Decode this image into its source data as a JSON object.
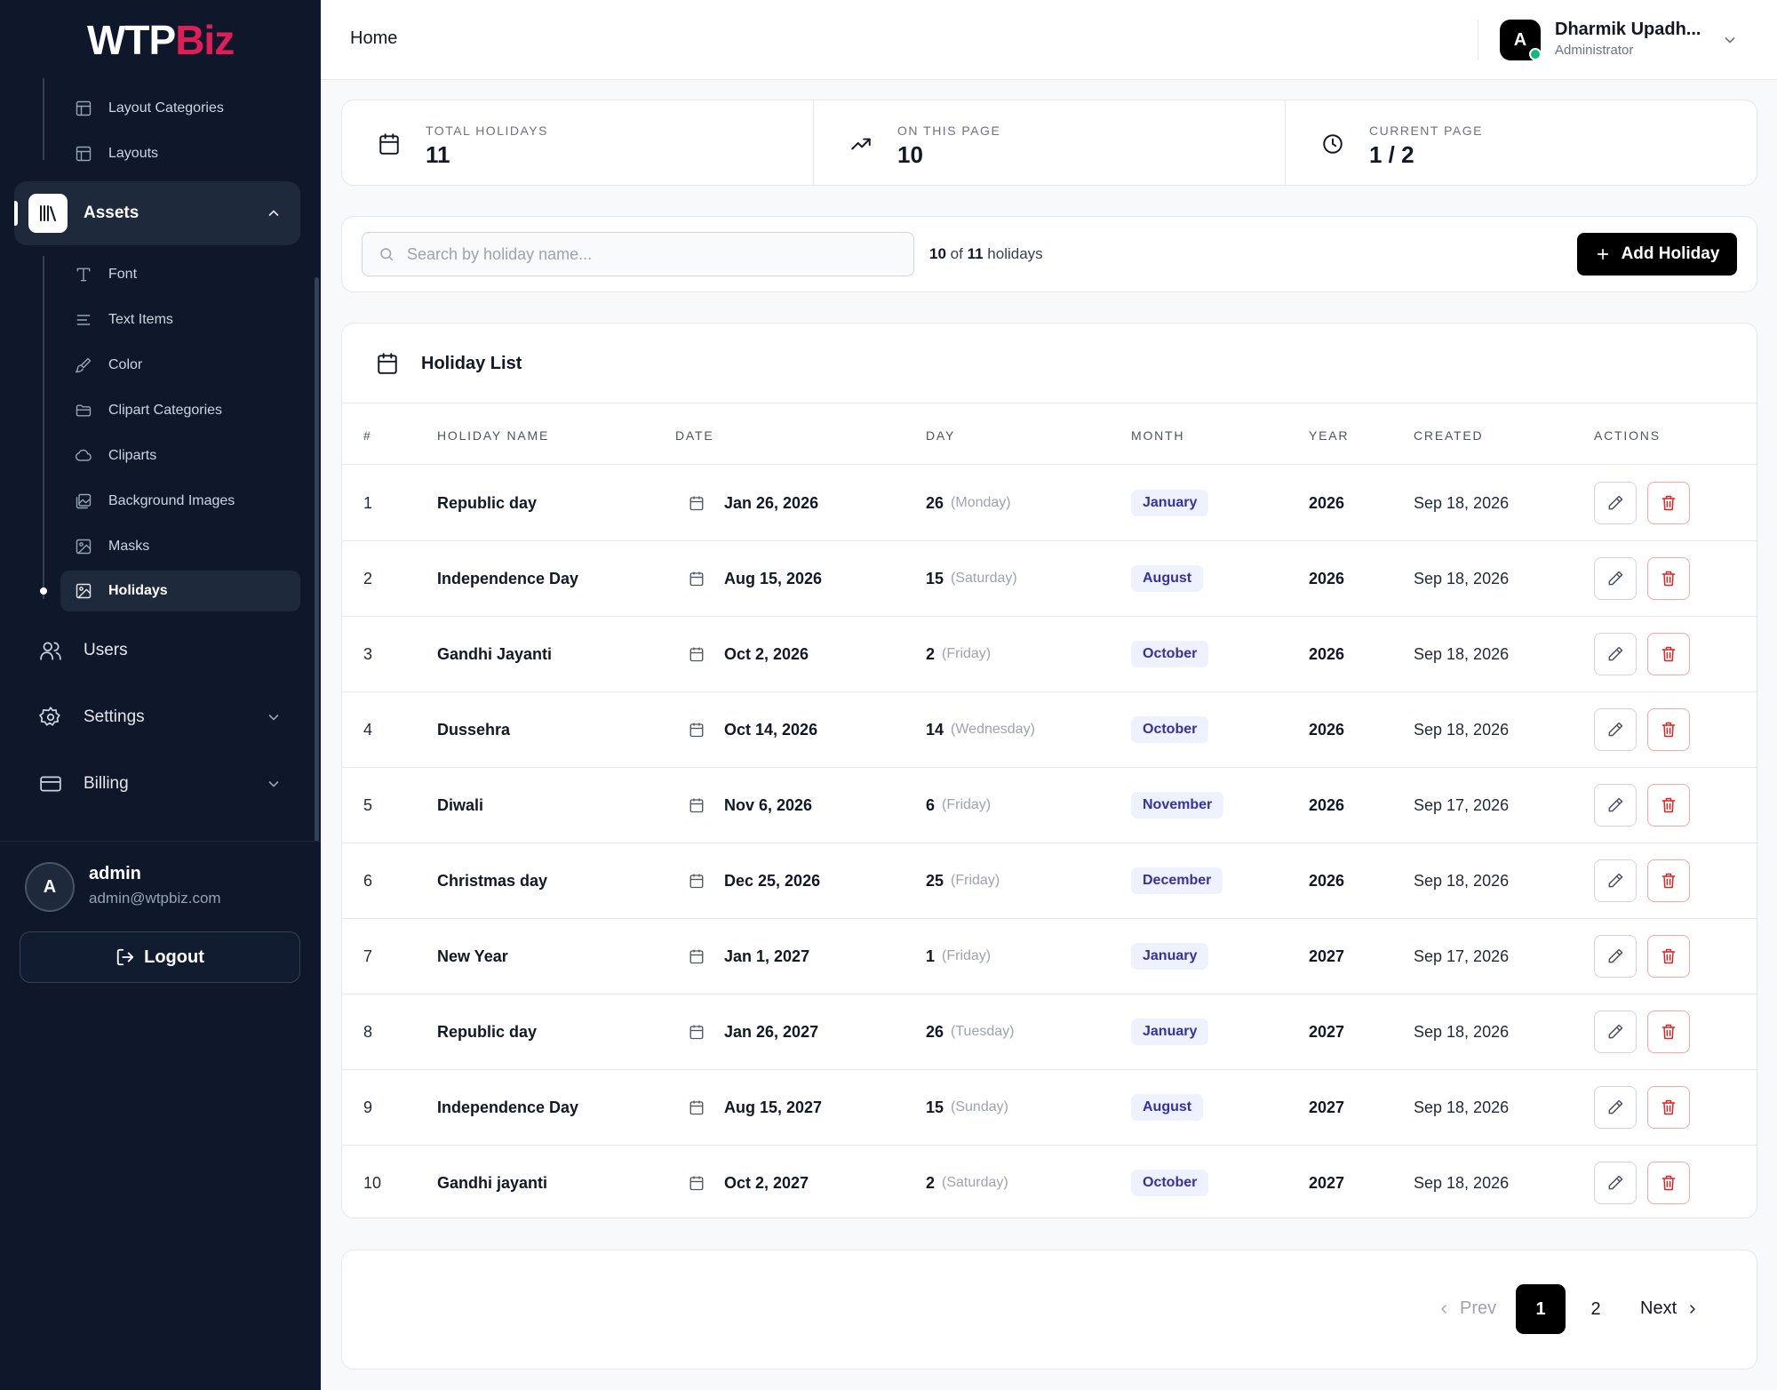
{
  "brand": {
    "logo_part1": "WTP",
    "logo_part2": "Biz"
  },
  "sidebar": {
    "layout_items": [
      {
        "label": "Layout Categories",
        "icon": "layout-icon"
      },
      {
        "label": "Layouts",
        "icon": "layout-icon"
      }
    ],
    "assets": {
      "label": "Assets",
      "icon": "library-icon",
      "expanded": true
    },
    "asset_items": [
      {
        "label": "Font",
        "icon": "type-icon"
      },
      {
        "label": "Text Items",
        "icon": "align-left-icon"
      },
      {
        "label": "Color",
        "icon": "paintbrush-icon"
      },
      {
        "label": "Clipart Categories",
        "icon": "folder-open-icon"
      },
      {
        "label": "Cliparts",
        "icon": "cloud-icon"
      },
      {
        "label": "Background Images",
        "icon": "images-icon"
      },
      {
        "label": "Masks",
        "icon": "image-icon"
      },
      {
        "label": "Holidays",
        "icon": "image-icon",
        "active": true
      }
    ],
    "nav": [
      {
        "label": "Users",
        "icon": "users-icon"
      },
      {
        "label": "Settings",
        "icon": "gear-icon"
      },
      {
        "label": "Billing",
        "icon": "credit-card-icon"
      }
    ],
    "account": {
      "avatar_initial": "A",
      "name": "admin",
      "email": "admin@wtpbiz.com"
    },
    "logout_label": "Logout"
  },
  "topbar": {
    "breadcrumb": "Home",
    "user": {
      "avatar_initial": "A",
      "name": "Dharmik Upadh...",
      "role": "Administrator",
      "status_color": "#10b981"
    }
  },
  "stats": [
    {
      "label": "TOTAL HOLIDAYS",
      "value": "11",
      "icon": "calendar-icon"
    },
    {
      "label": "ON THIS PAGE",
      "value": "10",
      "icon": "trending-up-icon"
    },
    {
      "label": "CURRENT PAGE",
      "value": "1 / 2",
      "icon": "clock-icon"
    }
  ],
  "toolbar": {
    "search_placeholder": "Search by holiday name...",
    "search_value": "",
    "count_shown": "10",
    "count_of": "of",
    "count_total": "11",
    "count_suffix": "holidays",
    "add_label": "Add Holiday"
  },
  "list": {
    "title": "Holiday List",
    "columns": [
      "#",
      "HOLIDAY NAME",
      "DATE",
      "DAY",
      "MONTH",
      "YEAR",
      "CREATED",
      "ACTIONS"
    ],
    "rows": [
      {
        "num": "1",
        "name": "Republic day",
        "date": "Jan 26, 2026",
        "day": "26",
        "weekday": "(Monday)",
        "month": "January",
        "year": "2026",
        "created": "Sep 18, 2026"
      },
      {
        "num": "2",
        "name": "Independence Day",
        "date": "Aug 15, 2026",
        "day": "15",
        "weekday": "(Saturday)",
        "month": "August",
        "year": "2026",
        "created": "Sep 18, 2026"
      },
      {
        "num": "3",
        "name": "Gandhi Jayanti",
        "date": "Oct 2, 2026",
        "day": "2",
        "weekday": "(Friday)",
        "month": "October",
        "year": "2026",
        "created": "Sep 18, 2026"
      },
      {
        "num": "4",
        "name": "Dussehra",
        "date": "Oct 14, 2026",
        "day": "14",
        "weekday": "(Wednesday)",
        "month": "October",
        "year": "2026",
        "created": "Sep 18, 2026"
      },
      {
        "num": "5",
        "name": "Diwali",
        "date": "Nov 6, 2026",
        "day": "6",
        "weekday": "(Friday)",
        "month": "November",
        "year": "2026",
        "created": "Sep 17, 2026"
      },
      {
        "num": "6",
        "name": "Christmas day",
        "date": "Dec 25, 2026",
        "day": "25",
        "weekday": "(Friday)",
        "month": "December",
        "year": "2026",
        "created": "Sep 18, 2026"
      },
      {
        "num": "7",
        "name": "New Year",
        "date": "Jan 1, 2027",
        "day": "1",
        "weekday": "(Friday)",
        "month": "January",
        "year": "2027",
        "created": "Sep 17, 2026"
      },
      {
        "num": "8",
        "name": "Republic day",
        "date": "Jan 26, 2027",
        "day": "26",
        "weekday": "(Tuesday)",
        "month": "January",
        "year": "2027",
        "created": "Sep 18, 2026"
      },
      {
        "num": "9",
        "name": "Independence Day",
        "date": "Aug 15, 2027",
        "day": "15",
        "weekday": "(Sunday)",
        "month": "August",
        "year": "2027",
        "created": "Sep 18, 2026"
      },
      {
        "num": "10",
        "name": "Gandhi jayanti",
        "date": "Oct 2, 2027",
        "day": "2",
        "weekday": "(Saturday)",
        "month": "October",
        "year": "2027",
        "created": "Sep 18, 2026"
      }
    ]
  },
  "pagination": {
    "prev_label": "Prev",
    "pages": [
      "1",
      "2"
    ],
    "current": "1",
    "next_label": "Next"
  },
  "colors": {
    "sidebar_bg": "#0f172a",
    "accent": "#000000",
    "brand_pink": "#e11d58",
    "danger": "#dc2626",
    "badge_bg": "#eef2ff",
    "badge_text": "#3730a3"
  }
}
